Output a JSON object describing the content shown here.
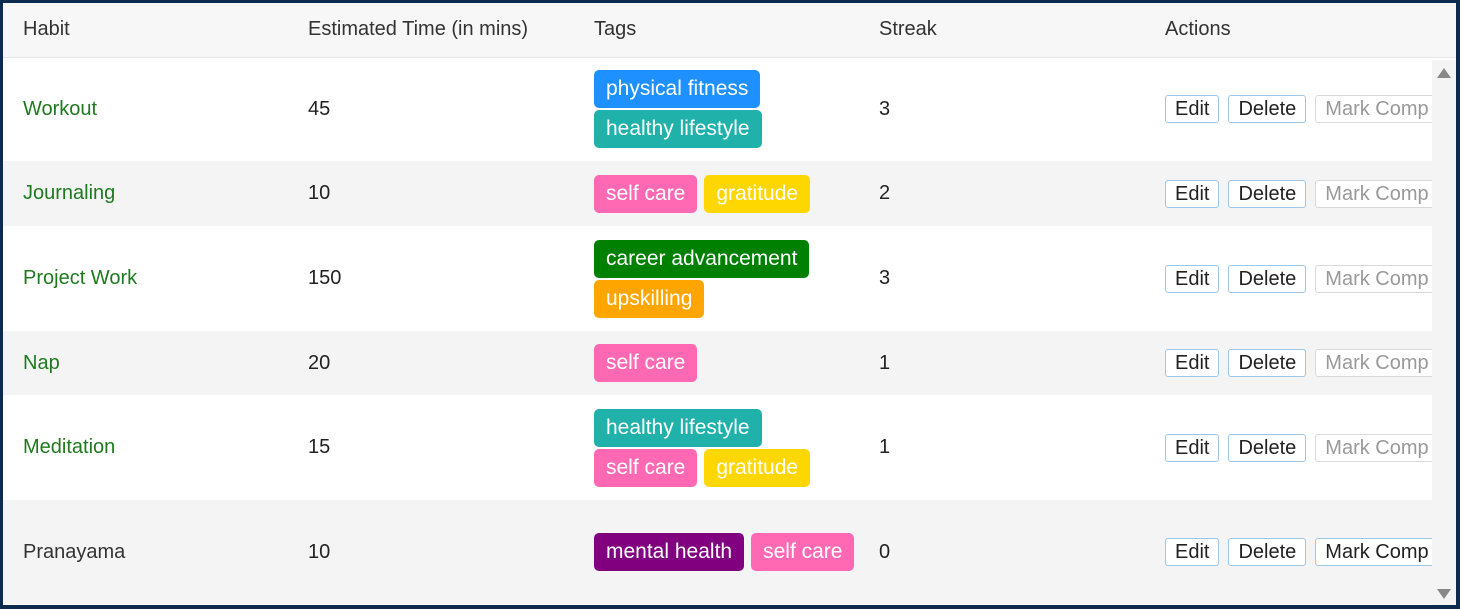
{
  "columns": {
    "habit": "Habit",
    "time": "Estimated Time (in mins)",
    "tags": "Tags",
    "streak": "Streak",
    "actions": "Actions"
  },
  "buttons": {
    "edit": "Edit",
    "delete": "Delete",
    "mark_complete": "Mark Comp"
  },
  "tag_colors": {
    "physical fitness": "#1e90ff",
    "healthy lifestyle": "#20b2aa",
    "self care": "#ff69b4",
    "gratitude": "#ffd700",
    "career advancement": "#008000",
    "upskilling": "#ffa500",
    "mental health": "#800080"
  },
  "rows": [
    {
      "habit": "Workout",
      "time": "45",
      "tags": [
        "physical fitness",
        "healthy lifestyle"
      ],
      "streak": "3",
      "completed_today": true
    },
    {
      "habit": "Journaling",
      "time": "10",
      "tags": [
        "self care",
        "gratitude"
      ],
      "streak": "2",
      "completed_today": true
    },
    {
      "habit": "Project Work",
      "time": "150",
      "tags": [
        "career advancement",
        "upskilling"
      ],
      "streak": "3",
      "completed_today": true
    },
    {
      "habit": "Nap",
      "time": "20",
      "tags": [
        "self care"
      ],
      "streak": "1",
      "completed_today": true
    },
    {
      "habit": "Meditation",
      "time": "15",
      "tags": [
        "healthy lifestyle",
        "self care",
        "gratitude"
      ],
      "streak": "1",
      "completed_today": true
    },
    {
      "habit": "Pranayama",
      "time": "10",
      "tags": [
        "mental health",
        "self care"
      ],
      "streak": "0",
      "completed_today": false
    }
  ]
}
